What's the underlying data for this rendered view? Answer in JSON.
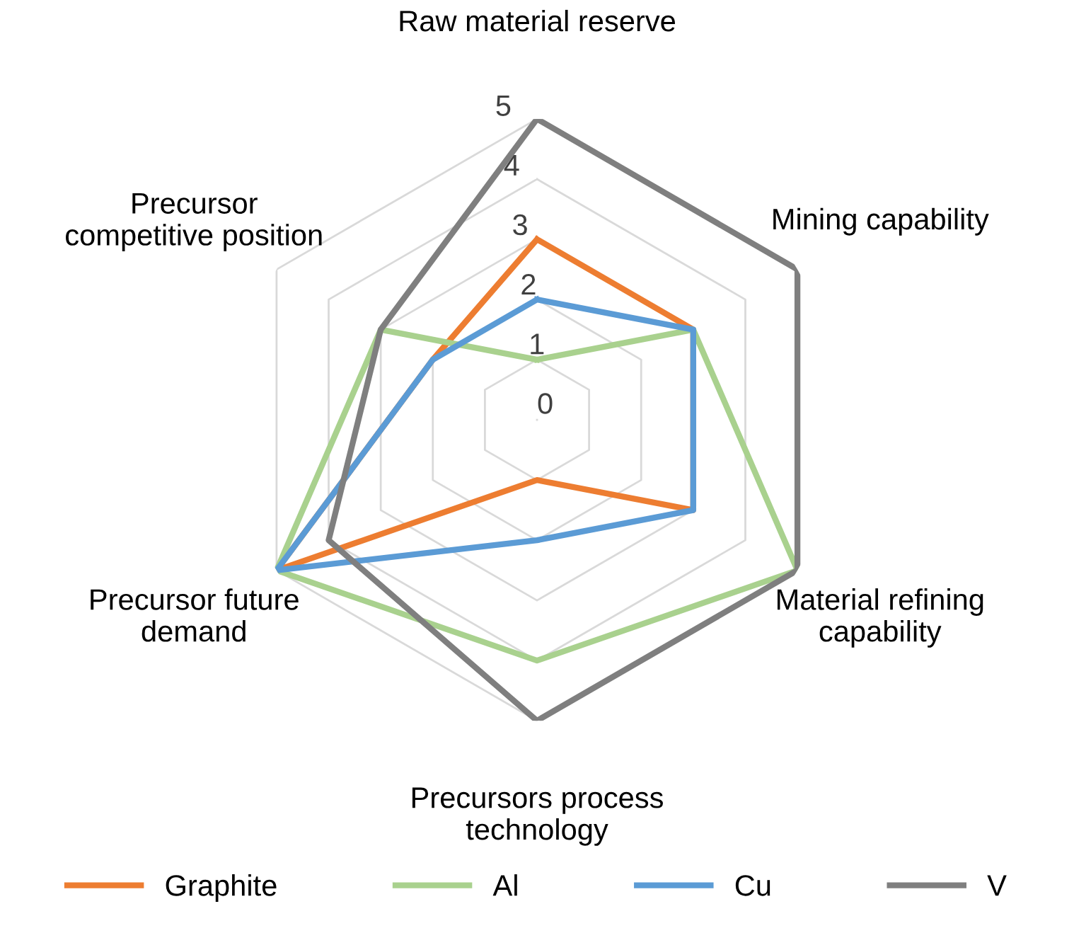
{
  "chart_data": {
    "type": "radar",
    "categories": [
      "Raw material reserve",
      "Mining capability",
      "Material refining\ncapability",
      "Precursors process\ntechnology",
      "Precursor future\ndemand",
      "Precursor\ncompetitive position"
    ],
    "series": [
      {
        "name": "Graphite",
        "color": "#ed7d31",
        "values": [
          3,
          3,
          3,
          1,
          5,
          2
        ]
      },
      {
        "name": "Al",
        "color": "#a9d18e",
        "values": [
          1,
          3,
          5,
          4,
          5,
          3
        ]
      },
      {
        "name": "Cu",
        "color": "#5b9bd5",
        "values": [
          2,
          3,
          3,
          2,
          5,
          2
        ]
      },
      {
        "name": "V",
        "color": "#7f7f7f",
        "values": [
          5,
          5,
          5,
          5,
          4,
          3
        ]
      }
    ],
    "ylim": [
      0,
      5
    ],
    "yticks": [
      0,
      1,
      2,
      3,
      4,
      5
    ],
    "grid": true,
    "legend": "bottom",
    "marker": "none",
    "line_style": "solid"
  }
}
